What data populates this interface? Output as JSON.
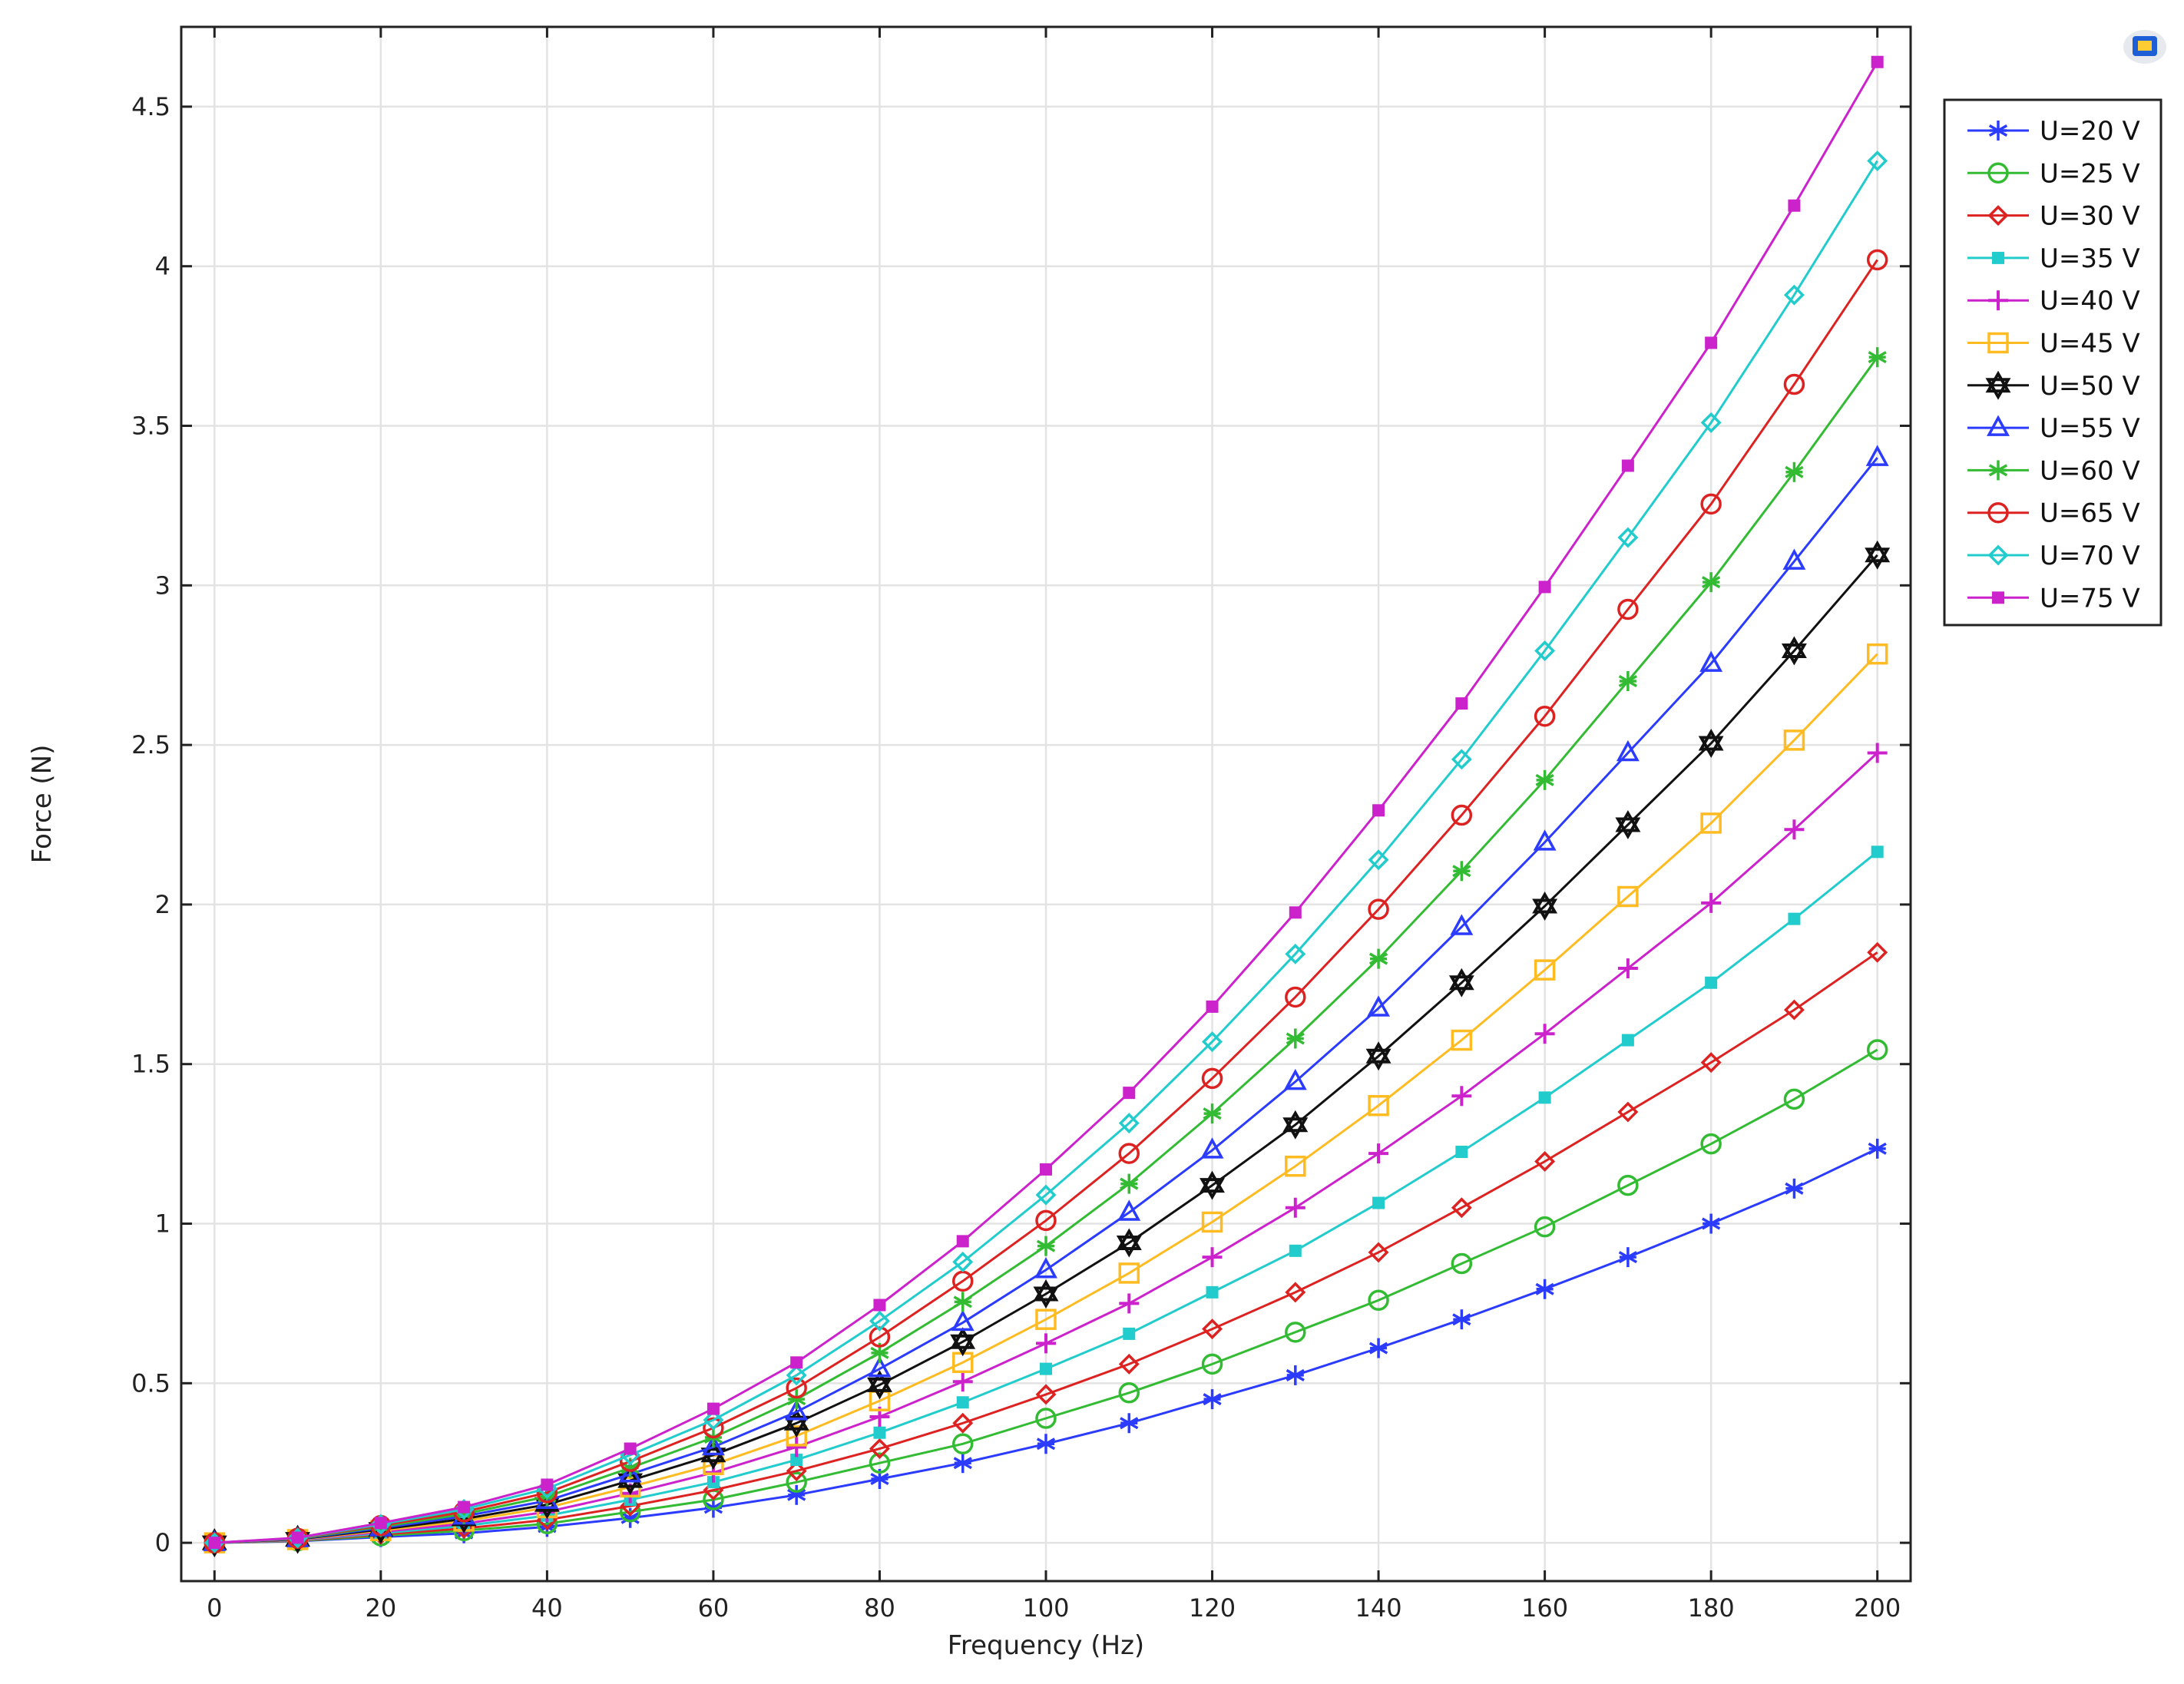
{
  "chart_data": {
    "type": "line",
    "xlabel": "Frequency (Hz)",
    "ylabel": "Force (N)",
    "xlim": [
      -4,
      204
    ],
    "ylim": [
      -0.12,
      4.75
    ],
    "x_ticks": [
      0,
      20,
      40,
      60,
      80,
      100,
      120,
      140,
      160,
      180,
      200
    ],
    "x_tick_labels": [
      "0",
      "20",
      "40",
      "60",
      "80",
      "100",
      "120",
      "140",
      "160",
      "180",
      "200"
    ],
    "y_ticks": [
      0,
      0.5,
      1,
      1.5,
      2,
      2.5,
      3,
      3.5,
      4,
      4.5
    ],
    "y_tick_labels": [
      "0",
      "0.5",
      "1",
      "1.5",
      "2",
      "2.5",
      "3",
      "3.5",
      "4",
      "4.5"
    ],
    "grid": true,
    "legend_position": "outside-top-right",
    "x": [
      0,
      10,
      20,
      30,
      40,
      50,
      60,
      70,
      80,
      90,
      100,
      110,
      120,
      130,
      140,
      150,
      160,
      170,
      180,
      190,
      200
    ],
    "series": [
      {
        "name": "U=20 V",
        "color": "#2b3bff",
        "marker": "asterisk",
        "values": [
          0,
          0.005,
          0.018,
          0.03,
          0.05,
          0.078,
          0.11,
          0.15,
          0.2,
          0.25,
          0.31,
          0.375,
          0.45,
          0.525,
          0.61,
          0.7,
          0.795,
          0.895,
          1.0,
          1.11,
          1.235
        ]
      },
      {
        "name": "U=25 V",
        "color": "#33bb33",
        "marker": "circle",
        "values": [
          0,
          0.006,
          0.022,
          0.038,
          0.06,
          0.097,
          0.135,
          0.19,
          0.25,
          0.31,
          0.39,
          0.47,
          0.56,
          0.66,
          0.76,
          0.875,
          0.99,
          1.12,
          1.25,
          1.39,
          1.545
        ]
      },
      {
        "name": "U=30 V",
        "color": "#dd2222",
        "marker": "diamond",
        "values": [
          0,
          0.007,
          0.026,
          0.045,
          0.072,
          0.115,
          0.165,
          0.225,
          0.295,
          0.375,
          0.465,
          0.56,
          0.67,
          0.785,
          0.91,
          1.05,
          1.195,
          1.35,
          1.505,
          1.67,
          1.85
        ]
      },
      {
        "name": "U=35 V",
        "color": "#22cccc",
        "marker": "square-filled",
        "values": [
          0,
          0.008,
          0.03,
          0.053,
          0.085,
          0.135,
          0.19,
          0.26,
          0.345,
          0.44,
          0.545,
          0.655,
          0.785,
          0.915,
          1.065,
          1.225,
          1.395,
          1.575,
          1.755,
          1.955,
          2.165
        ]
      },
      {
        "name": "U=40 V",
        "color": "#cc22cc",
        "marker": "plus",
        "values": [
          0,
          0.009,
          0.034,
          0.06,
          0.097,
          0.155,
          0.22,
          0.3,
          0.395,
          0.505,
          0.625,
          0.75,
          0.895,
          1.05,
          1.22,
          1.4,
          1.595,
          1.8,
          2.005,
          2.235,
          2.475
        ]
      },
      {
        "name": "U=45 V",
        "color": "#ffbb22",
        "marker": "square",
        "values": [
          0,
          0.01,
          0.038,
          0.068,
          0.11,
          0.175,
          0.245,
          0.335,
          0.445,
          0.565,
          0.7,
          0.845,
          1.005,
          1.18,
          1.37,
          1.575,
          1.795,
          2.025,
          2.255,
          2.515,
          2.785
        ]
      },
      {
        "name": "U=50 V",
        "color": "#111111",
        "marker": "hexagram",
        "values": [
          0,
          0.011,
          0.042,
          0.075,
          0.12,
          0.195,
          0.275,
          0.375,
          0.495,
          0.63,
          0.78,
          0.94,
          1.12,
          1.31,
          1.525,
          1.755,
          1.995,
          2.25,
          2.505,
          2.795,
          3.095
        ]
      },
      {
        "name": "U=55 V",
        "color": "#2b3bff",
        "marker": "triangle",
        "values": [
          0,
          0.012,
          0.046,
          0.083,
          0.132,
          0.215,
          0.3,
          0.41,
          0.545,
          0.69,
          0.855,
          1.035,
          1.23,
          1.445,
          1.675,
          1.93,
          2.195,
          2.475,
          2.755,
          3.075,
          3.4
        ]
      },
      {
        "name": "U=60 V",
        "color": "#33bb33",
        "marker": "asterisk",
        "values": [
          0,
          0.013,
          0.05,
          0.09,
          0.145,
          0.235,
          0.33,
          0.45,
          0.595,
          0.755,
          0.93,
          1.125,
          1.345,
          1.58,
          1.83,
          2.105,
          2.39,
          2.7,
          3.01,
          3.355,
          3.715
        ]
      },
      {
        "name": "U=65 V",
        "color": "#dd2222",
        "marker": "circle",
        "values": [
          0,
          0.014,
          0.054,
          0.097,
          0.157,
          0.255,
          0.36,
          0.485,
          0.645,
          0.82,
          1.01,
          1.22,
          1.455,
          1.71,
          1.985,
          2.28,
          2.59,
          2.925,
          3.255,
          3.63,
          4.02
        ]
      },
      {
        "name": "U=70 V",
        "color": "#22cccc",
        "marker": "diamond",
        "values": [
          0,
          0.015,
          0.058,
          0.105,
          0.17,
          0.275,
          0.385,
          0.525,
          0.695,
          0.88,
          1.09,
          1.315,
          1.57,
          1.845,
          2.14,
          2.455,
          2.795,
          3.15,
          3.51,
          3.91,
          4.33
        ]
      },
      {
        "name": "U=75 V",
        "color": "#cc22cc",
        "marker": "square-filled",
        "values": [
          0,
          0.016,
          0.062,
          0.112,
          0.182,
          0.295,
          0.42,
          0.565,
          0.745,
          0.945,
          1.17,
          1.41,
          1.68,
          1.975,
          2.295,
          2.63,
          2.995,
          3.375,
          3.76,
          4.19,
          4.64
        ]
      }
    ]
  },
  "toolbar": {
    "icon": "graphics-window-icon"
  }
}
